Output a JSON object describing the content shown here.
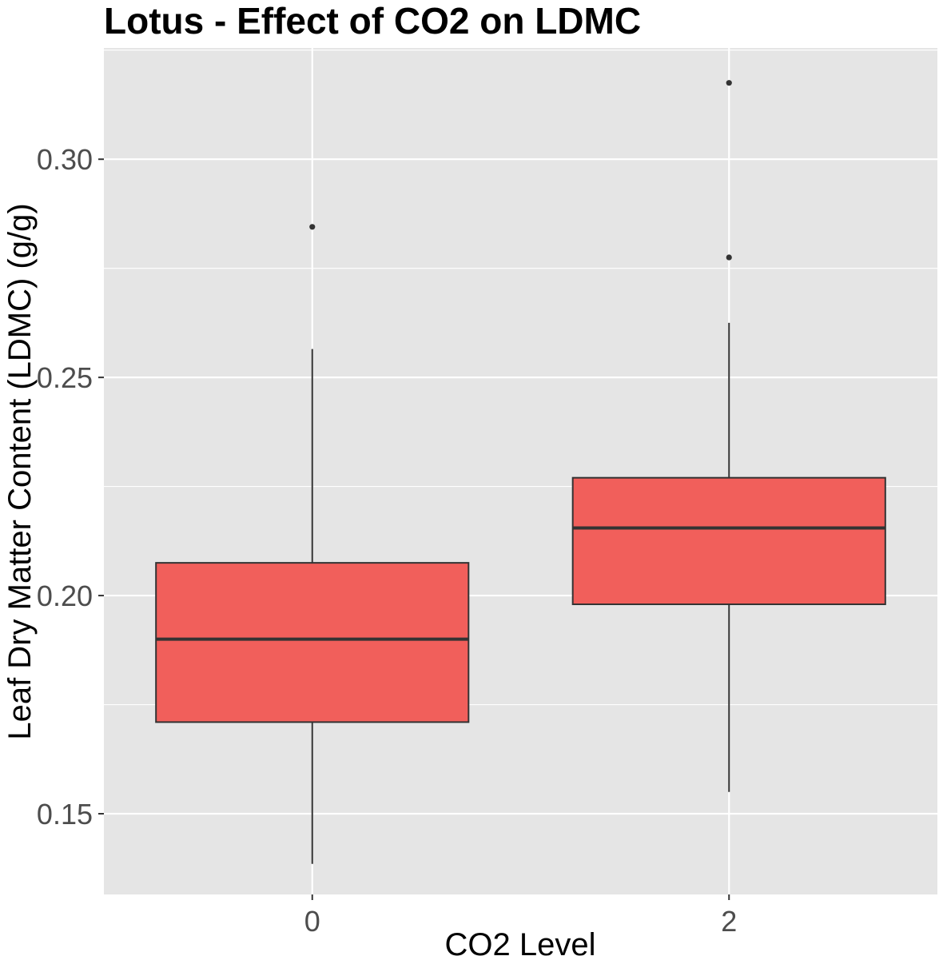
{
  "chart_data": {
    "type": "box",
    "title": "Lotus - Effect of CO2 on LDMC",
    "xlabel": "CO2 Level",
    "ylabel": "Leaf Dry Matter Content (LDMC) (g/g)",
    "categories": [
      "0",
      "2"
    ],
    "ylim": [
      0.1315,
      0.3255
    ],
    "yticks": [
      0.15,
      0.2,
      0.25,
      0.3
    ],
    "ytick_labels": [
      "0.15",
      "0.20",
      "0.25",
      "0.30"
    ],
    "grid": true,
    "legend": "none",
    "fill_color": "#f15f5b",
    "panel_color": "#e5e5e5",
    "boxes": [
      {
        "category": "0",
        "whisker_low": 0.1385,
        "q1": 0.171,
        "median": 0.19,
        "q3": 0.2075,
        "whisker_high": 0.2565,
        "outliers": [
          0.2845
        ]
      },
      {
        "category": "2",
        "whisker_low": 0.155,
        "q1": 0.198,
        "median": 0.2155,
        "q3": 0.227,
        "whisker_high": 0.2625,
        "outliers": [
          0.2775,
          0.3175
        ]
      }
    ]
  }
}
